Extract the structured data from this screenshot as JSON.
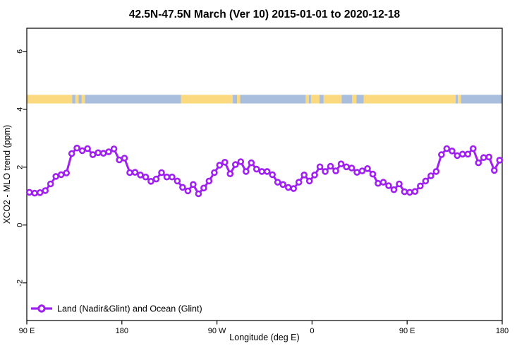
{
  "title": "42.5N-47.5N March (Ver 10)   2015-01-01 to 2020-12-18",
  "legend": {
    "label": "Land (Nadir&Glint) and Ocean (Glint)"
  },
  "colors": {
    "line": "#A020F0",
    "marker_fill": "#ffffff",
    "land_band": "#FBD97F",
    "ocean_band": "#A9BEDC",
    "axis": "#000000"
  },
  "chart_data": {
    "type": "line",
    "title": "42.5N-47.5N March (Ver 10)   2015-01-01 to 2020-12-18",
    "xlabel": "Longitude (deg E)",
    "ylabel": "XCO2 - MLO trend (ppm)",
    "xlim_deg_east_continuous": [
      90,
      540
    ],
    "ylim": [
      -3.3,
      6.8
    ],
    "grid": false,
    "legend_position": "bottom-left-inside",
    "x_ticks": [
      {
        "lon": 90,
        "label": "90 E"
      },
      {
        "lon": 180,
        "label": "180"
      },
      {
        "lon": 270,
        "label": "90 W"
      },
      {
        "lon": 360,
        "label": "0"
      },
      {
        "lon": 450,
        "label": "90 E"
      },
      {
        "lon": 540,
        "label": "180"
      }
    ],
    "y_ticks": [
      {
        "value": 6,
        "label": "6"
      },
      {
        "value": 4,
        "label": "4"
      },
      {
        "value": 2,
        "label": "2"
      },
      {
        "value": 0,
        "label": "0"
      },
      {
        "value": -2,
        "label": "-2"
      }
    ],
    "x_start_lon": 92.5,
    "x_step_lon": 5,
    "values": [
      1.13,
      1.1,
      1.12,
      1.19,
      1.42,
      1.68,
      1.74,
      1.8,
      2.47,
      2.66,
      2.57,
      2.64,
      2.43,
      2.5,
      2.48,
      2.53,
      2.63,
      2.25,
      2.31,
      1.81,
      1.82,
      1.73,
      1.66,
      1.51,
      1.59,
      1.81,
      1.66,
      1.66,
      1.52,
      1.3,
      1.18,
      1.4,
      1.08,
      1.28,
      1.52,
      1.81,
      2.07,
      2.17,
      1.77,
      2.09,
      2.19,
      1.85,
      2.15,
      1.93,
      1.85,
      1.85,
      1.74,
      1.48,
      1.4,
      1.3,
      1.26,
      1.48,
      1.73,
      1.52,
      1.73,
      2.01,
      1.85,
      2.03,
      1.87,
      2.11,
      2.01,
      1.97,
      1.82,
      1.87,
      1.95,
      1.76,
      1.44,
      1.48,
      1.36,
      1.22,
      1.42,
      1.15,
      1.13,
      1.16,
      1.35,
      1.52,
      1.7,
      1.85,
      2.43,
      2.64,
      2.56,
      2.4,
      2.45,
      2.45,
      2.64,
      2.15,
      2.33,
      2.35,
      1.89,
      2.24
    ],
    "surface_band": {
      "description": "land/ocean strip along latitude band",
      "top_value": 4.5,
      "bottom_value": 4.2,
      "segments": [
        {
          "from": 90,
          "to": 133,
          "type": "land"
        },
        {
          "from": 133,
          "to": 136,
          "type": "ocean"
        },
        {
          "from": 136,
          "to": 139,
          "type": "land"
        },
        {
          "from": 139,
          "to": 142,
          "type": "ocean"
        },
        {
          "from": 142,
          "to": 145,
          "type": "land"
        },
        {
          "from": 145,
          "to": 236,
          "type": "ocean"
        },
        {
          "from": 236,
          "to": 285,
          "type": "land"
        },
        {
          "from": 285,
          "to": 289,
          "type": "ocean"
        },
        {
          "from": 289,
          "to": 292,
          "type": "land"
        },
        {
          "from": 292,
          "to": 354,
          "type": "ocean"
        },
        {
          "from": 354,
          "to": 357,
          "type": "land"
        },
        {
          "from": 357,
          "to": 359,
          "type": "ocean"
        },
        {
          "from": 359,
          "to": 367,
          "type": "land"
        },
        {
          "from": 367,
          "to": 371,
          "type": "ocean"
        },
        {
          "from": 371,
          "to": 388,
          "type": "land"
        },
        {
          "from": 388,
          "to": 398,
          "type": "ocean"
        },
        {
          "from": 398,
          "to": 402,
          "type": "land"
        },
        {
          "from": 402,
          "to": 409,
          "type": "ocean"
        },
        {
          "from": 409,
          "to": 496,
          "type": "land"
        },
        {
          "from": 496,
          "to": 498,
          "type": "ocean"
        },
        {
          "from": 498,
          "to": 501,
          "type": "land"
        },
        {
          "from": 501,
          "to": 540,
          "type": "ocean"
        }
      ]
    }
  }
}
